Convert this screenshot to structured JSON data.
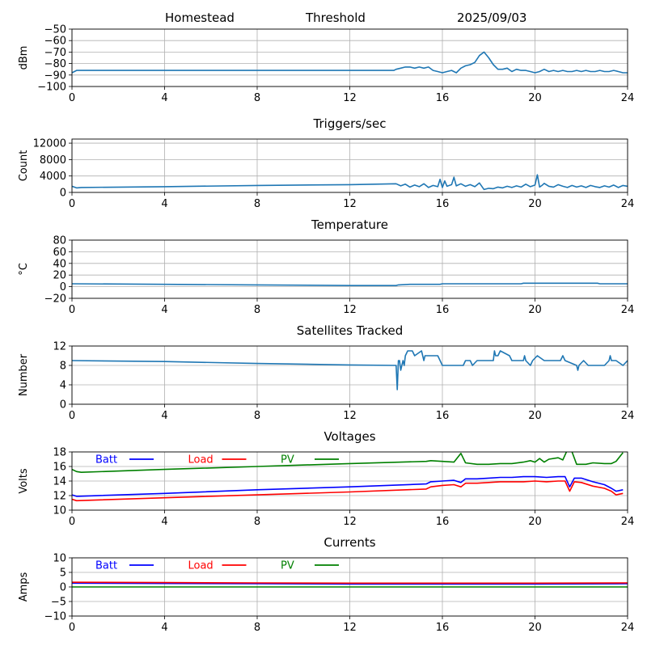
{
  "header": {
    "station": "Homestead",
    "threshold": "Threshold",
    "date": "2025/09/03"
  },
  "colors": {
    "default_line": "#1f77b4",
    "grid": "#b0b0b0",
    "batt": "#0000ff",
    "load": "#ff0000",
    "pv": "#008000"
  },
  "chart_data": [
    {
      "id": "signal",
      "type": "line",
      "title": "",
      "xlabel": "",
      "ylabel": "dBm",
      "xlim": [
        0,
        24
      ],
      "ylim": [
        -100,
        -50
      ],
      "xticks": [
        0,
        4,
        8,
        12,
        16,
        20,
        24
      ],
      "yticks": [
        -100,
        -90,
        -80,
        -70,
        -60,
        -50
      ],
      "grid": true,
      "series": [
        {
          "color": "default_line",
          "x": [
            0,
            0.2,
            0.5,
            4,
            8,
            12,
            13.9,
            14.0,
            14.2,
            14.4,
            14.6,
            14.8,
            15.0,
            15.2,
            15.4,
            15.6,
            15.8,
            16.0,
            16.2,
            16.4,
            16.6,
            16.8,
            17.0,
            17.2,
            17.4,
            17.6,
            17.8,
            18.0,
            18.2,
            18.4,
            18.6,
            18.8,
            19.0,
            19.2,
            19.4,
            19.6,
            19.8,
            20.0,
            20.2,
            20.4,
            20.6,
            20.8,
            21.0,
            21.2,
            21.4,
            21.6,
            21.8,
            22.0,
            22.2,
            22.4,
            22.6,
            22.8,
            23.0,
            23.2,
            23.4,
            23.6,
            23.8,
            24
          ],
          "y": [
            -88,
            -86,
            -86,
            -86,
            -86,
            -86,
            -86,
            -85,
            -84,
            -83,
            -83,
            -84,
            -83,
            -84,
            -83,
            -86,
            -87,
            -88,
            -87,
            -86,
            -88,
            -84,
            -82,
            -81,
            -79,
            -73,
            -70,
            -75,
            -81,
            -85,
            -85,
            -84,
            -87,
            -85,
            -86,
            -86,
            -87,
            -88,
            -87,
            -85,
            -87,
            -86,
            -87,
            -86,
            -87,
            -87,
            -86,
            -87,
            -86,
            -87,
            -87,
            -86,
            -87,
            -87,
            -86,
            -87,
            -88,
            -88
          ]
        }
      ]
    },
    {
      "id": "triggers",
      "type": "line",
      "title": "Triggers/sec",
      "xlabel": "",
      "ylabel": "Count",
      "xlim": [
        0,
        24
      ],
      "ylim": [
        0,
        13000
      ],
      "xticks": [
        0,
        4,
        8,
        12,
        16,
        20,
        24
      ],
      "yticks": [
        0,
        4000,
        8000,
        12000
      ],
      "grid": true,
      "series": [
        {
          "color": "default_line",
          "x": [
            0,
            0.2,
            0.4,
            4,
            8,
            12,
            14.0,
            14.2,
            14.4,
            14.6,
            14.8,
            15.0,
            15.2,
            15.4,
            15.6,
            15.8,
            15.9,
            16.0,
            16.1,
            16.2,
            16.4,
            16.5,
            16.6,
            16.8,
            17.0,
            17.2,
            17.4,
            17.6,
            17.8,
            18.0,
            18.2,
            18.4,
            18.6,
            18.8,
            19.0,
            19.2,
            19.4,
            19.6,
            19.8,
            20.0,
            20.1,
            20.2,
            20.3,
            20.4,
            20.6,
            20.8,
            21.0,
            21.2,
            21.4,
            21.6,
            21.8,
            22.0,
            22.2,
            22.4,
            22.6,
            22.8,
            23.0,
            23.2,
            23.4,
            23.6,
            23.8,
            24
          ],
          "y": [
            1500,
            1100,
            1200,
            1400,
            1700,
            1900,
            2100,
            1600,
            2000,
            1300,
            1800,
            1400,
            2100,
            1200,
            1700,
            1400,
            3200,
            1200,
            2800,
            1500,
            1900,
            3700,
            1600,
            2100,
            1500,
            1900,
            1400,
            2300,
            700,
            1000,
            900,
            1300,
            1100,
            1500,
            1200,
            1600,
            1300,
            2000,
            1400,
            1800,
            4300,
            1300,
            1700,
            2200,
            1500,
            1300,
            1900,
            1500,
            1200,
            1700,
            1300,
            1600,
            1200,
            1700,
            1400,
            1200,
            1600,
            1300,
            1800,
            1200,
            1700,
            1500
          ]
        }
      ]
    },
    {
      "id": "temperature",
      "type": "line",
      "title": "Temperature",
      "xlabel": "",
      "ylabel": "°C",
      "xlim": [
        0,
        24
      ],
      "ylim": [
        -20,
        80
      ],
      "xticks": [
        0,
        4,
        8,
        12,
        16,
        20,
        24
      ],
      "yticks": [
        -20,
        0,
        20,
        40,
        60,
        80
      ],
      "grid": true,
      "series": [
        {
          "color": "default_line",
          "x": [
            0,
            4,
            8,
            12,
            14,
            14.1,
            14.6,
            15.9,
            16.0,
            19.4,
            19.5,
            22.7,
            22.8,
            24
          ],
          "y": [
            5,
            4,
            3,
            2,
            2,
            3,
            4,
            4,
            5,
            5,
            6,
            6,
            5,
            5
          ]
        }
      ]
    },
    {
      "id": "satellites",
      "type": "line",
      "title": "Satellites Tracked",
      "xlabel": "",
      "ylabel": "Number",
      "xlim": [
        0,
        24
      ],
      "ylim": [
        0,
        12
      ],
      "xticks": [
        0,
        4,
        8,
        12,
        16,
        20,
        24
      ],
      "yticks": [
        0,
        4,
        8,
        12
      ],
      "grid": true,
      "series": [
        {
          "color": "default_line",
          "x": [
            0,
            4,
            8,
            12,
            14.0,
            14.05,
            14.1,
            14.15,
            14.2,
            14.3,
            14.35,
            14.4,
            14.5,
            14.7,
            14.8,
            15.1,
            15.2,
            15.25,
            15.3,
            15.5,
            15.8,
            16.0,
            16.9,
            17.0,
            17.2,
            17.3,
            17.5,
            18.2,
            18.25,
            18.3,
            18.4,
            18.5,
            18.9,
            19.0,
            19.5,
            19.55,
            19.6,
            19.8,
            19.9,
            20.1,
            20.4,
            21.1,
            21.2,
            21.3,
            21.8,
            21.85,
            21.9,
            22.1,
            22.3,
            23.0,
            23.2,
            23.25,
            23.3,
            23.5,
            23.8,
            24
          ],
          "y": [
            9,
            8.8,
            8.4,
            8.1,
            8,
            3,
            9,
            9,
            7,
            9,
            8,
            10,
            11,
            11,
            10,
            11,
            9,
            10,
            10,
            10,
            10,
            8,
            8,
            9,
            9,
            8,
            9,
            9,
            11,
            10,
            10,
            11,
            10,
            9,
            9,
            10,
            9,
            8,
            9,
            10,
            9,
            9,
            10,
            9,
            8,
            7,
            8,
            9,
            8,
            8,
            9,
            10,
            9,
            9,
            8,
            9
          ]
        }
      ]
    },
    {
      "id": "voltages",
      "type": "line",
      "title": "Voltages",
      "xlabel": "",
      "ylabel": "Volts",
      "xlim": [
        0,
        24
      ],
      "ylim": [
        10,
        18
      ],
      "xticks": [
        0,
        4,
        8,
        12,
        16,
        20,
        24
      ],
      "yticks": [
        10,
        12,
        14,
        16,
        18
      ],
      "grid": true,
      "legend": "top-left",
      "series": [
        {
          "name": "Batt",
          "color": "batt",
          "x": [
            0,
            0.2,
            4,
            8,
            12,
            15.3,
            15.5,
            16.0,
            16.5,
            16.8,
            17.0,
            17.5,
            18.0,
            18.5,
            19.0,
            19.5,
            20.0,
            20.5,
            21.0,
            21.3,
            21.5,
            21.7,
            22.0,
            22.5,
            23.0,
            23.3,
            23.5,
            23.8
          ],
          "y": [
            12.1,
            11.9,
            12.3,
            12.8,
            13.2,
            13.6,
            13.9,
            14.0,
            14.1,
            13.8,
            14.3,
            14.3,
            14.4,
            14.5,
            14.5,
            14.6,
            14.6,
            14.5,
            14.6,
            14.6,
            13.2,
            14.4,
            14.4,
            13.9,
            13.5,
            13.0,
            12.6,
            12.8
          ]
        },
        {
          "name": "Load",
          "color": "load",
          "x": [
            0,
            0.2,
            4,
            8,
            12,
            15.3,
            15.5,
            16.0,
            16.5,
            16.8,
            17.0,
            17.5,
            18.0,
            18.5,
            19.0,
            19.5,
            20.0,
            20.5,
            21.0,
            21.3,
            21.5,
            21.7,
            22.0,
            22.5,
            23.0,
            23.3,
            23.5,
            23.8
          ],
          "y": [
            11.5,
            11.3,
            11.7,
            12.1,
            12.5,
            12.9,
            13.2,
            13.4,
            13.5,
            13.2,
            13.7,
            13.7,
            13.8,
            13.9,
            13.9,
            13.9,
            14.0,
            13.9,
            14.0,
            14.0,
            12.6,
            13.9,
            13.8,
            13.3,
            13.0,
            12.6,
            12.1,
            12.3
          ]
        },
        {
          "name": "PV",
          "color": "pv",
          "x": [
            0,
            0.2,
            0.4,
            4,
            8,
            12,
            15.3,
            15.5,
            16.0,
            16.5,
            16.8,
            17.0,
            17.5,
            18.0,
            18.5,
            19.0,
            19.5,
            19.8,
            20.0,
            20.2,
            20.4,
            20.6,
            21.0,
            21.2,
            21.4,
            21.6,
            21.8,
            22.2,
            22.5,
            23.0,
            23.3,
            23.5,
            23.8
          ],
          "y": [
            15.6,
            15.3,
            15.2,
            15.6,
            16.0,
            16.4,
            16.7,
            16.8,
            16.7,
            16.6,
            17.8,
            16.5,
            16.3,
            16.3,
            16.4,
            16.4,
            16.6,
            16.8,
            16.6,
            17.1,
            16.6,
            17.0,
            17.2,
            16.9,
            18.3,
            18.0,
            16.3,
            16.3,
            16.5,
            16.4,
            16.4,
            16.7,
            17.9
          ]
        }
      ]
    },
    {
      "id": "currents",
      "type": "line",
      "title": "Currents",
      "xlabel": "",
      "ylabel": "Amps",
      "xlim": [
        0,
        24
      ],
      "ylim": [
        -10,
        10
      ],
      "xticks": [
        0,
        4,
        8,
        12,
        16,
        20,
        24
      ],
      "yticks": [
        -10,
        -5,
        0,
        5,
        10
      ],
      "grid": true,
      "legend": "top-left",
      "series": [
        {
          "name": "Batt",
          "color": "batt",
          "x": [
            0,
            4,
            8,
            12,
            16,
            20,
            24
          ],
          "y": [
            1.3,
            1.2,
            1.1,
            1.0,
            1.0,
            1.0,
            1.1
          ]
        },
        {
          "name": "Load",
          "color": "load",
          "x": [
            0,
            4,
            8,
            12,
            16,
            20,
            24
          ],
          "y": [
            1.6,
            1.5,
            1.4,
            1.3,
            1.3,
            1.3,
            1.4
          ]
        },
        {
          "name": "PV",
          "color": "pv",
          "x": [
            0,
            4,
            8,
            12,
            16,
            20,
            24
          ],
          "y": [
            0,
            0,
            0,
            0,
            0,
            0,
            0
          ]
        }
      ]
    }
  ]
}
